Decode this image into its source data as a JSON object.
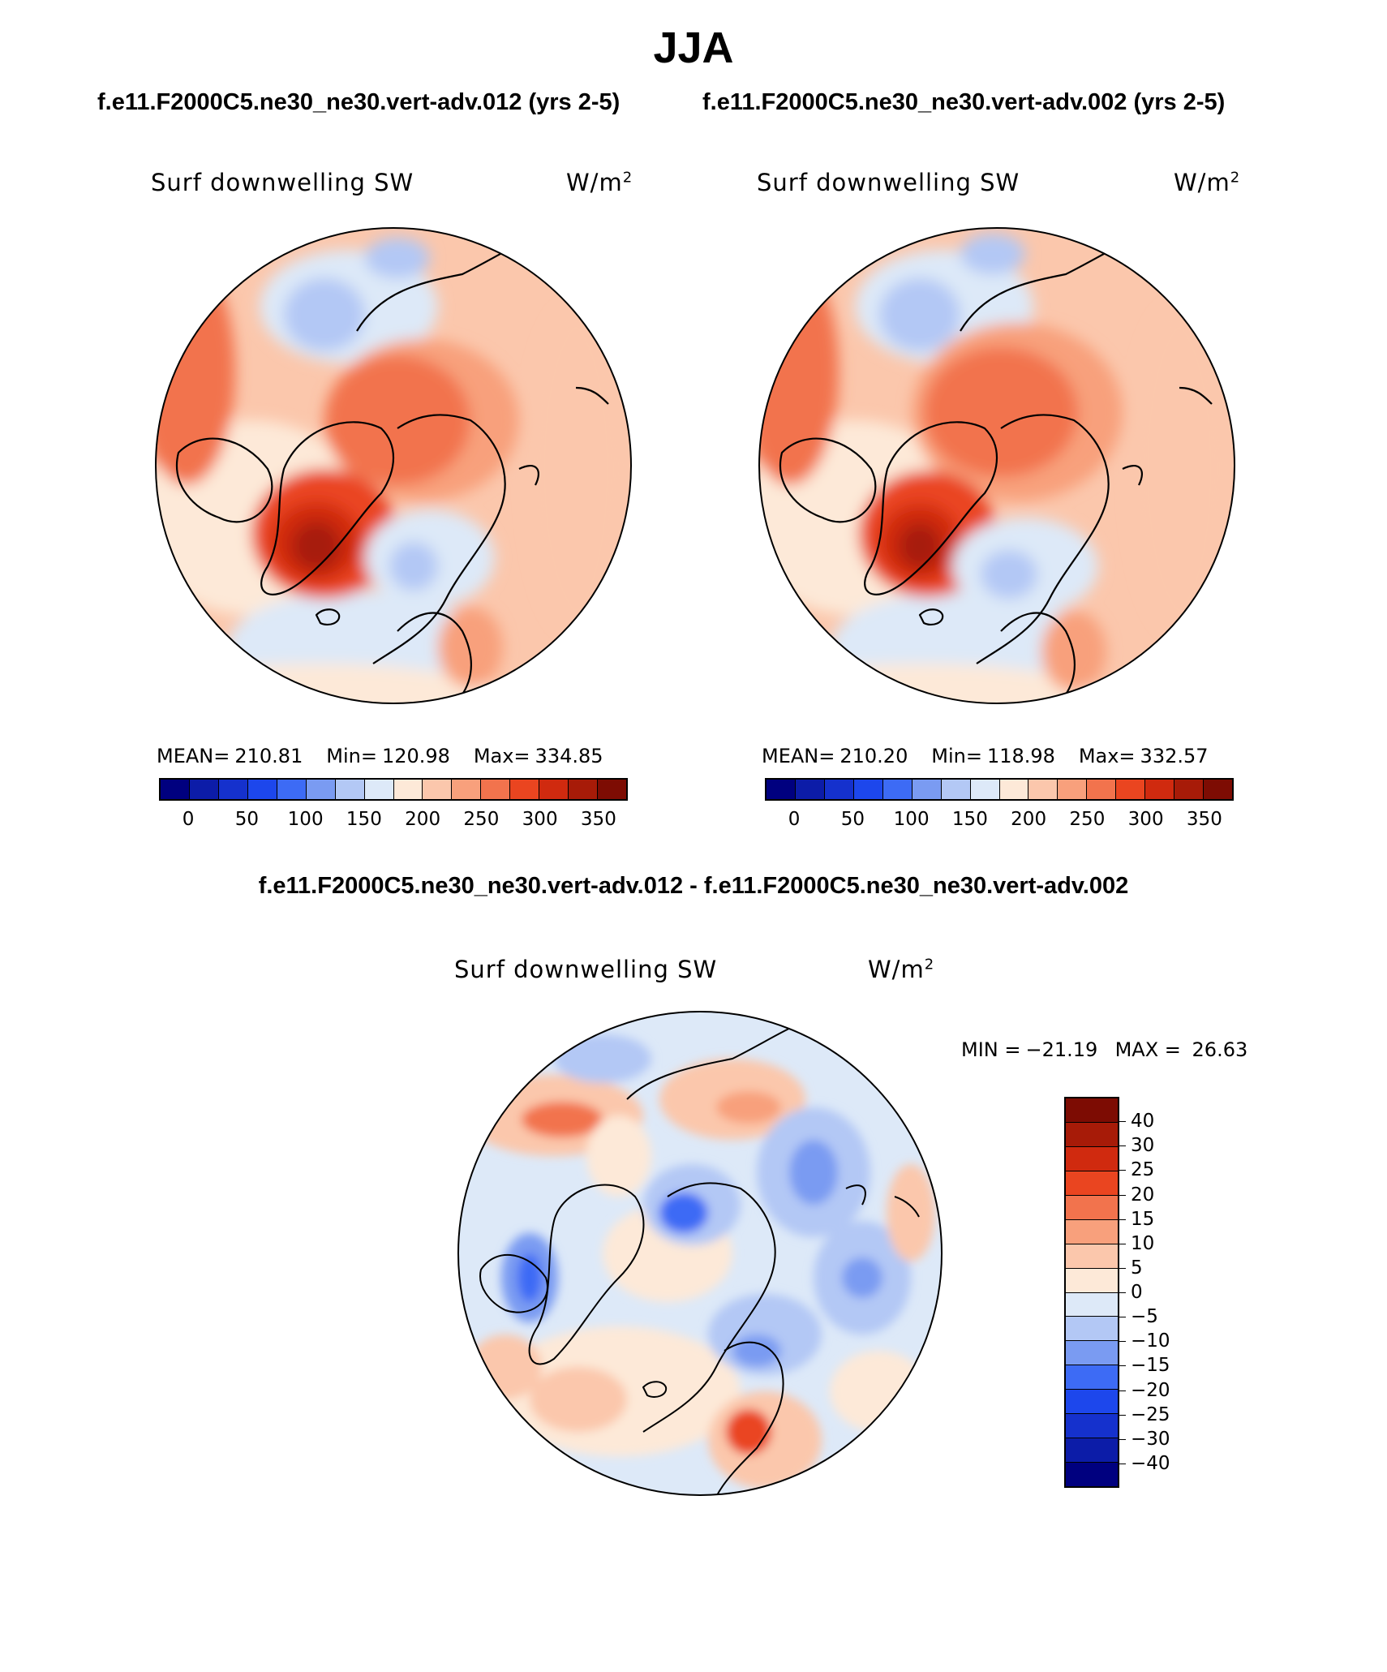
{
  "figure": {
    "season": "JJA",
    "case1_title": "f.e11.F2000C5.ne30_ne30.vert-adv.012 (yrs 2-5)",
    "case2_title": "f.e11.F2000C5.ne30_ne30.vert-adv.002 (yrs 2-5)",
    "diff_title": "f.e11.F2000C5.ne30_ne30.vert-adv.012 - f.e11.F2000C5.ne30_ne30.vert-adv.002"
  },
  "panels": [
    {
      "variable": "Surf downwelling SW",
      "units_base": "W/m",
      "units_exp": "2",
      "mean_label": "MEAN=",
      "mean": "210.81",
      "min_label": "Min=",
      "min": "120.98",
      "max_label": "Max=",
      "max": "334.85"
    },
    {
      "variable": "Surf downwelling SW",
      "units_base": "W/m",
      "units_exp": "2",
      "mean_label": "MEAN=",
      "mean": "210.20",
      "min_label": "Min=",
      "min": "118.98",
      "max_label": "Max=",
      "max": "332.57"
    }
  ],
  "diff_panel": {
    "variable": "Surf downwelling SW",
    "units_base": "W/m",
    "units_exp": "2",
    "min_label": "MIN =",
    "min": "−21.19",
    "max_label": "MAX =",
    "max": "26.63"
  },
  "abs_colorbar": {
    "colors": [
      "#00007f",
      "#0c1ca8",
      "#1531cd",
      "#1d47ec",
      "#3d6bf5",
      "#7a9bf2",
      "#b3c8f5",
      "#dde9f8",
      "#fde9d8",
      "#fbc7ac",
      "#f8a07c",
      "#f2734d",
      "#ea4520",
      "#d02a0f",
      "#a71b08",
      "#7d0c03"
    ],
    "tick_labels": [
      "0",
      "50",
      "100",
      "150",
      "200",
      "250",
      "300",
      "350"
    ]
  },
  "diff_colorbar": {
    "colors": [
      "#7d0c03",
      "#a71b08",
      "#d02a0f",
      "#ea4520",
      "#f2734d",
      "#f8a07c",
      "#fbc7ac",
      "#fde9d8",
      "#dde9f8",
      "#b3c8f5",
      "#7a9bf2",
      "#3d6bf5",
      "#1d47ec",
      "#1531cd",
      "#0c1ca8",
      "#00007f"
    ],
    "tick_labels": [
      "40",
      "30",
      "25",
      "20",
      "15",
      "10",
      "5",
      "0",
      "−5",
      "−10",
      "−15",
      "−20",
      "−25",
      "−30",
      "−40"
    ]
  }
}
